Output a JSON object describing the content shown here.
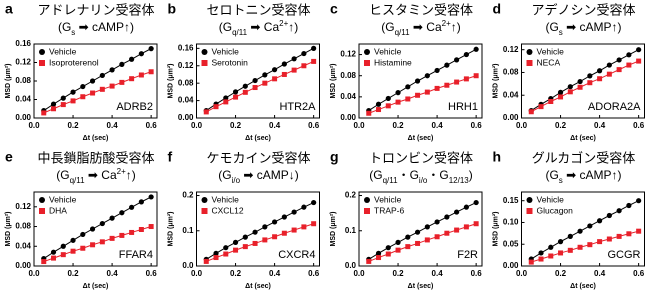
{
  "chart_data": [
    {
      "type": "line",
      "panel": "a",
      "title": "アドレナリン受容体",
      "pathway": [
        {
          "text": "(G"
        },
        {
          "sub": "s"
        },
        {
          "text": " ➡ cAMP↑)"
        }
      ],
      "annotation": "ADRB2",
      "x_label": "Δt (sec)",
      "y_label": "MSD (μm²)",
      "legend": "upper left",
      "x": [
        0.05,
        0.1,
        0.15,
        0.2,
        0.25,
        0.3,
        0.35,
        0.4,
        0.45,
        0.5,
        0.55,
        0.6
      ],
      "xlim": [
        0,
        0.63
      ],
      "xticks": [
        {
          "value": 0,
          "label": "0.0"
        },
        0.2,
        0.4,
        0.6
      ],
      "ylim": [
        0,
        0.16
      ],
      "yticks": [
        {
          "value": 0,
          "label": "0.00"
        },
        0.04,
        0.08,
        0.12,
        0.16
      ],
      "series": [
        {
          "name": "Vehicle",
          "color": "#000000",
          "marker": "circle",
          "values": [
            0.016,
            0.03,
            0.043,
            0.056,
            0.068,
            0.08,
            0.092,
            0.104,
            0.116,
            0.127,
            0.139,
            0.15
          ]
        },
        {
          "name": "Isoproterenol",
          "color": "#e8202a",
          "marker": "square",
          "values": [
            0.011,
            0.02,
            0.029,
            0.037,
            0.046,
            0.054,
            0.062,
            0.069,
            0.077,
            0.085,
            0.093,
            0.1
          ]
        }
      ]
    },
    {
      "type": "line",
      "panel": "b",
      "title": "セロトニン受容体",
      "pathway": [
        {
          "text": "(G"
        },
        {
          "sub": "q/11"
        },
        {
          "text": " ➡ Ca"
        },
        {
          "sup": "2+"
        },
        {
          "text": "↑)"
        }
      ],
      "annotation": "HTR2A",
      "x_label": "Δt (sec)",
      "y_label": "MSD (μm²)",
      "legend": "upper left",
      "x": [
        0.05,
        0.1,
        0.15,
        0.2,
        0.25,
        0.3,
        0.35,
        0.4,
        0.45,
        0.5,
        0.55,
        0.6
      ],
      "xlim": [
        0,
        0.63
      ],
      "xticks": [
        {
          "value": 0,
          "label": "0.0"
        },
        0.2,
        0.4,
        0.6
      ],
      "ylim": [
        0,
        0.17
      ],
      "yticks": [
        {
          "value": 0,
          "label": "0.00"
        },
        0.04,
        0.08,
        0.12,
        0.16
      ],
      "series": [
        {
          "name": "Vehicle",
          "color": "#000000",
          "marker": "circle",
          "values": [
            0.017,
            0.032,
            0.046,
            0.06,
            0.073,
            0.086,
            0.099,
            0.111,
            0.124,
            0.136,
            0.148,
            0.16
          ]
        },
        {
          "name": "Serotonin",
          "color": "#e8202a",
          "marker": "square",
          "values": [
            0.014,
            0.026,
            0.037,
            0.048,
            0.059,
            0.07,
            0.08,
            0.09,
            0.1,
            0.11,
            0.12,
            0.13
          ]
        }
      ]
    },
    {
      "type": "line",
      "panel": "c",
      "title": "ヒスタミン受容体",
      "pathway": [
        {
          "text": "(G"
        },
        {
          "sub": "q/11"
        },
        {
          "text": " ➡ Ca"
        },
        {
          "sup": "2+"
        },
        {
          "text": "↑)"
        }
      ],
      "annotation": "HRH1",
      "x_label": "Δt (sec)",
      "y_label": "MSD (μm²)",
      "legend": "upper left",
      "x": [
        0.05,
        0.1,
        0.15,
        0.2,
        0.25,
        0.3,
        0.35,
        0.4,
        0.45,
        0.5,
        0.55,
        0.6
      ],
      "xlim": [
        0,
        0.63
      ],
      "xticks": [
        {
          "value": 0,
          "label": "0.0"
        },
        0.2,
        0.4,
        0.6
      ],
      "ylim": [
        0,
        0.14
      ],
      "yticks": [
        {
          "value": 0,
          "label": "0.00"
        },
        0.04,
        0.08,
        0.12
      ],
      "series": [
        {
          "name": "Vehicle",
          "color": "#000000",
          "marker": "circle",
          "values": [
            0.014,
            0.026,
            0.037,
            0.048,
            0.059,
            0.07,
            0.08,
            0.09,
            0.1,
            0.11,
            0.12,
            0.13
          ]
        },
        {
          "name": "Histamine",
          "color": "#e8202a",
          "marker": "square",
          "values": [
            0.009,
            0.016,
            0.023,
            0.03,
            0.036,
            0.043,
            0.049,
            0.056,
            0.062,
            0.068,
            0.074,
            0.08
          ]
        }
      ]
    },
    {
      "type": "line",
      "panel": "d",
      "title": "アデノシン受容体",
      "pathway": [
        {
          "text": "(G"
        },
        {
          "sub": "s"
        },
        {
          "text": " ➡ cAMP↑)"
        }
      ],
      "annotation": "ADORA2A",
      "x_label": "Δt (sec)",
      "y_label": "MSD (μm²)",
      "legend": "upper left",
      "x": [
        0.05,
        0.1,
        0.15,
        0.2,
        0.25,
        0.3,
        0.35,
        0.4,
        0.45,
        0.5,
        0.55,
        0.6
      ],
      "xlim": [
        0,
        0.63
      ],
      "xticks": [
        {
          "value": 0,
          "label": "0.0"
        },
        0.2,
        0.4,
        0.6
      ],
      "ylim": [
        0,
        0.13
      ],
      "yticks": [
        {
          "value": 0,
          "label": "0.00"
        },
        0.04,
        0.08,
        0.12
      ],
      "series": [
        {
          "name": "Vehicle",
          "color": "#000000",
          "marker": "circle",
          "values": [
            0.013,
            0.024,
            0.034,
            0.045,
            0.055,
            0.064,
            0.074,
            0.083,
            0.093,
            0.102,
            0.111,
            0.12
          ]
        },
        {
          "name": "NECA",
          "color": "#e8202a",
          "marker": "square",
          "values": [
            0.011,
            0.02,
            0.029,
            0.037,
            0.046,
            0.054,
            0.062,
            0.069,
            0.077,
            0.085,
            0.093,
            0.1
          ]
        }
      ]
    },
    {
      "type": "line",
      "panel": "e",
      "title": "中長鎖脂肪酸受容体",
      "pathway": [
        {
          "text": "(G"
        },
        {
          "sub": "q/11"
        },
        {
          "text": " ➡ Ca"
        },
        {
          "sup": "2+"
        },
        {
          "text": "↑)"
        }
      ],
      "annotation": "FFAR4",
      "x_label": "Δt (sec)",
      "y_label": "MSD (μm²)",
      "legend": "upper left",
      "x": [
        0.05,
        0.1,
        0.15,
        0.2,
        0.25,
        0.3,
        0.35,
        0.4,
        0.45,
        0.5,
        0.55,
        0.6
      ],
      "xlim": [
        0,
        0.63
      ],
      "xticks": [
        {
          "value": 0,
          "label": "0.0"
        },
        0.2,
        0.4,
        0.6
      ],
      "ylim": [
        0,
        0.15
      ],
      "yticks": [
        {
          "value": 0,
          "label": "0.00"
        },
        0.04,
        0.08,
        0.12
      ],
      "series": [
        {
          "name": "Vehicle",
          "color": "#000000",
          "marker": "circle",
          "values": [
            0.015,
            0.028,
            0.04,
            0.052,
            0.064,
            0.075,
            0.086,
            0.097,
            0.108,
            0.119,
            0.13,
            0.14
          ]
        },
        {
          "name": "DHA",
          "color": "#e8202a",
          "marker": "square",
          "values": [
            0.009,
            0.016,
            0.023,
            0.03,
            0.036,
            0.043,
            0.049,
            0.056,
            0.062,
            0.068,
            0.074,
            0.08
          ]
        }
      ]
    },
    {
      "type": "line",
      "panel": "f",
      "title": "ケモカイン受容体",
      "pathway": [
        {
          "text": "(G"
        },
        {
          "sub": "i/o"
        },
        {
          "text": " ➡ cAMP↓)"
        }
      ],
      "annotation": "CXCR4",
      "x_label": "Δt (sec)",
      "y_label": "MSD (μm²)",
      "legend": "upper left",
      "x": [
        0.05,
        0.1,
        0.15,
        0.2,
        0.25,
        0.3,
        0.35,
        0.4,
        0.45,
        0.5,
        0.55,
        0.6
      ],
      "xlim": [
        0,
        0.63
      ],
      "xticks": [
        {
          "value": 0,
          "label": "0.0"
        },
        0.2,
        0.4,
        0.6
      ],
      "ylim": [
        0,
        0.21
      ],
      "yticks": [
        {
          "value": 0,
          "label": "0.0"
        },
        0.1,
        0.2
      ],
      "series": [
        {
          "name": "Vehicle",
          "color": "#000000",
          "marker": "circle",
          "values": [
            0.019,
            0.036,
            0.052,
            0.067,
            0.082,
            0.096,
            0.111,
            0.125,
            0.139,
            0.153,
            0.167,
            0.18
          ]
        },
        {
          "name": "CXCL12",
          "color": "#e8202a",
          "marker": "square",
          "values": [
            0.013,
            0.024,
            0.034,
            0.045,
            0.055,
            0.064,
            0.074,
            0.083,
            0.093,
            0.102,
            0.111,
            0.12
          ]
        }
      ]
    },
    {
      "type": "line",
      "panel": "g",
      "title": "トロンビン受容体",
      "pathway": [
        {
          "text": "(G"
        },
        {
          "sub": "q/11"
        },
        {
          "text": "・G"
        },
        {
          "sub": "i/o"
        },
        {
          "text": "・G"
        },
        {
          "sub": "12/13"
        },
        {
          "text": ")"
        }
      ],
      "annotation": "F2R",
      "x_label": "Δt (sec)",
      "y_label": "MSD (μm²)",
      "legend": "upper left",
      "x": [
        0.05,
        0.1,
        0.15,
        0.2,
        0.25,
        0.3,
        0.35,
        0.4,
        0.45,
        0.5,
        0.55,
        0.6
      ],
      "xlim": [
        0,
        0.63
      ],
      "xticks": [
        {
          "value": 0,
          "label": "0.0"
        },
        0.2,
        0.4,
        0.6
      ],
      "ylim": [
        0,
        0.21
      ],
      "yticks": [
        {
          "value": 0,
          "label": "0.0"
        },
        0.1,
        0.2
      ],
      "series": [
        {
          "name": "Vehicle",
          "color": "#000000",
          "marker": "circle",
          "values": [
            0.019,
            0.036,
            0.052,
            0.067,
            0.082,
            0.096,
            0.111,
            0.125,
            0.139,
            0.153,
            0.167,
            0.18
          ]
        },
        {
          "name": "TRAP-6",
          "color": "#e8202a",
          "marker": "square",
          "values": [
            0.013,
            0.024,
            0.034,
            0.045,
            0.055,
            0.064,
            0.074,
            0.083,
            0.093,
            0.102,
            0.111,
            0.12
          ]
        }
      ]
    },
    {
      "type": "line",
      "panel": "h",
      "title": "グルカゴン受容体",
      "pathway": [
        {
          "text": "(G"
        },
        {
          "sub": "s"
        },
        {
          "text": " ➡ cAMP↑)"
        }
      ],
      "annotation": "GCGR",
      "x_label": "Δt (sec)",
      "y_label": "MSD (μm²)",
      "legend": "upper left",
      "x": [
        0.05,
        0.1,
        0.15,
        0.2,
        0.25,
        0.3,
        0.35,
        0.4,
        0.45,
        0.5,
        0.55,
        0.6
      ],
      "xlim": [
        0,
        0.63
      ],
      "xticks": [
        {
          "value": 0,
          "label": "0.0"
        },
        0.2,
        0.4,
        0.6
      ],
      "ylim": [
        0,
        0.17
      ],
      "yticks": [
        {
          "value": 0,
          "label": "0.00"
        },
        0.05,
        {
          "value": 0.1,
          "label": "0.10"
        },
        0.15
      ],
      "series": [
        {
          "name": "Vehicle",
          "color": "#000000",
          "marker": "circle",
          "values": [
            0.016,
            0.03,
            0.043,
            0.056,
            0.068,
            0.08,
            0.092,
            0.104,
            0.116,
            0.127,
            0.139,
            0.15
          ]
        },
        {
          "name": "Glucagon",
          "color": "#e8202a",
          "marker": "square",
          "values": [
            0.009,
            0.016,
            0.023,
            0.03,
            0.036,
            0.043,
            0.049,
            0.056,
            0.062,
            0.068,
            0.074,
            0.08
          ]
        }
      ]
    }
  ]
}
